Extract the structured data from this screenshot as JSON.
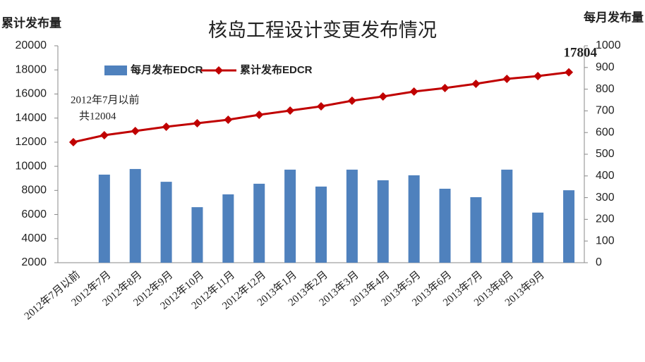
{
  "chart_data": {
    "type": "combo",
    "title": "核岛工程设计变更发布情况",
    "y_label": "累计发布量",
    "y2_label": "每月发布量",
    "categories": [
      "2012年7月以前",
      "2012年7月",
      "2012年8月",
      "2012年9月",
      "2012年10月",
      "2012年11月",
      "2012年12月",
      "2013年1月",
      "2013年2月",
      "2013年3月",
      "2013年4月",
      "2013年5月",
      "2013年6月",
      "2013年7月",
      "2013年8月",
      "2013年9月",
      null
    ],
    "series": [
      {
        "name": "每月发布EDCR",
        "type": "bar",
        "axis": "y2",
        "color": "#4f81bd",
        "values": [
          null,
          406,
          432,
          373,
          256,
          315,
          364,
          429,
          351,
          429,
          380,
          403,
          341,
          302,
          429,
          231,
          334
        ]
      },
      {
        "name": "累计发布EDCR",
        "type": "line",
        "axis": "y",
        "color": "#c00000",
        "values": [
          12004,
          12577,
          12928,
          13279,
          13571,
          13863,
          14272,
          14623,
          14974,
          15441,
          15792,
          16201,
          16493,
          16844,
          17253,
          17487,
          17804
        ]
      }
    ],
    "annotations": [
      "2012年7月以前",
      "共12004",
      "17804"
    ],
    "ylim": [
      2000,
      20000
    ],
    "yticks": [
      2000,
      4000,
      6000,
      8000,
      10000,
      12000,
      14000,
      16000,
      18000,
      20000
    ],
    "y2lim": [
      0,
      1000
    ],
    "y2ticks": [
      0,
      100,
      200,
      300,
      400,
      500,
      600,
      700,
      800,
      900,
      1000
    ],
    "legend": "top"
  }
}
